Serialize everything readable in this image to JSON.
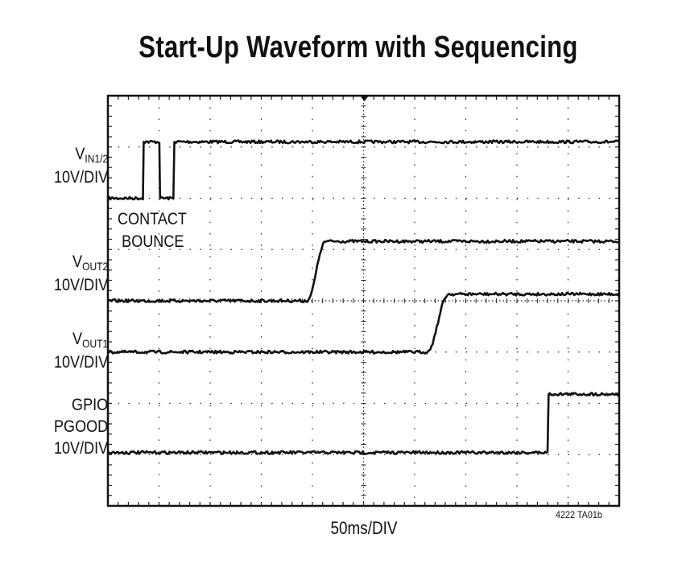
{
  "chart_data": {
    "type": "line",
    "title": "Start-Up Waveform with Sequencing",
    "xlabel": "50ms/DIV",
    "x_unit": "ms",
    "xlim": [
      0,
      500
    ],
    "y_unit": "div",
    "ylim": [
      0,
      8
    ],
    "grid": true,
    "x_divisions": 10,
    "y_divisions": 8,
    "trigger_marker": "top-center",
    "figure_code": "4222 TA01b",
    "annotation": [
      "CONTACT",
      "BOUNCE"
    ],
    "trace_color": "#111111",
    "series": [
      {
        "name": "VIN1/2",
        "label_main": "V",
        "label_sub": "IN1/2",
        "scale": "10V/DIV",
        "points": [
          [
            0,
            6.0
          ],
          [
            35,
            6.0
          ],
          [
            35,
            7.1
          ],
          [
            51,
            7.1
          ],
          [
            51,
            6.0
          ],
          [
            65,
            6.0
          ],
          [
            65,
            7.1
          ],
          [
            500,
            7.1
          ]
        ]
      },
      {
        "name": "VOUT2",
        "label_main": "V",
        "label_sub": "OUT2",
        "scale": "10V/DIV",
        "points": [
          [
            0,
            4.0
          ],
          [
            196,
            4.0
          ],
          [
            200,
            4.2
          ],
          [
            208,
            5.0
          ],
          [
            212,
            5.16
          ],
          [
            500,
            5.16
          ]
        ]
      },
      {
        "name": "VOUT1",
        "label_main": "V",
        "label_sub": "OUT1",
        "scale": "10V/DIV",
        "points": [
          [
            0,
            3.0
          ],
          [
            314,
            3.0
          ],
          [
            318,
            3.2
          ],
          [
            328,
            4.0
          ],
          [
            332,
            4.13
          ],
          [
            500,
            4.13
          ]
        ]
      },
      {
        "name": "GPIO PGOOD",
        "label_lines": [
          "GPIO",
          "PGOOD"
        ],
        "scale": "10V/DIV",
        "points": [
          [
            0,
            1.04
          ],
          [
            431,
            1.04
          ],
          [
            431,
            2.18
          ],
          [
            500,
            2.18
          ]
        ]
      }
    ]
  }
}
